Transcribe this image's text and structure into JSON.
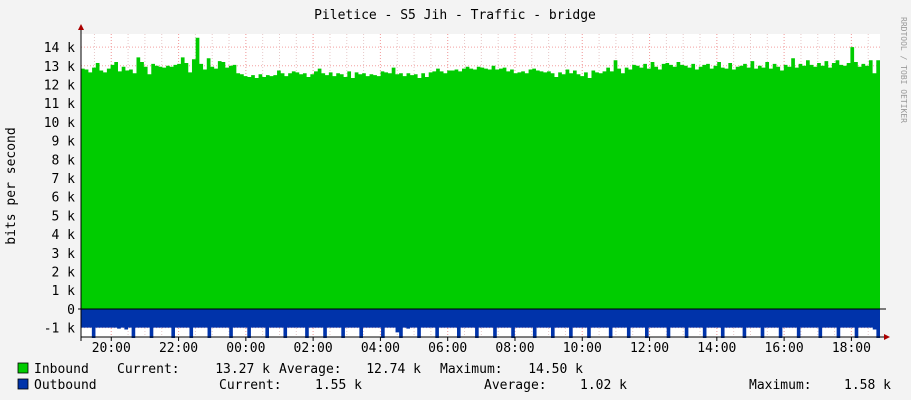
{
  "chart_data": {
    "type": "area",
    "title": "Piletice - S5 Jih - Traffic - bridge",
    "ylabel": "bits per second",
    "watermark": "RRDTOOL / TOBI OETIKER",
    "ylim": [
      -1500,
      14700
    ],
    "y_ticks": [
      {
        "v": 14000,
        "label": "14 k"
      },
      {
        "v": 13000,
        "label": "13 k"
      },
      {
        "v": 12000,
        "label": "12 k"
      },
      {
        "v": 11000,
        "label": "11 k"
      },
      {
        "v": 10000,
        "label": "10 k"
      },
      {
        "v": 9000,
        "label": "9 k"
      },
      {
        "v": 8000,
        "label": "8 k"
      },
      {
        "v": 7000,
        "label": "7 k"
      },
      {
        "v": 6000,
        "label": "6 k"
      },
      {
        "v": 5000,
        "label": "5 k"
      },
      {
        "v": 4000,
        "label": "4 k"
      },
      {
        "v": 3000,
        "label": "3 k"
      },
      {
        "v": 2000,
        "label": "2 k"
      },
      {
        "v": 1000,
        "label": "1 k"
      },
      {
        "v": 0,
        "label": "0"
      },
      {
        "v": -1000,
        "label": "-1 k"
      }
    ],
    "xlim": [
      19.1,
      18.85
    ],
    "x_ticks": [
      "20:00",
      "22:00",
      "00:00",
      "02:00",
      "04:00",
      "06:00",
      "08:00",
      "10:00",
      "12:00",
      "14:00",
      "16:00",
      "18:00"
    ],
    "series": [
      {
        "name": "Inbound",
        "color": "#00cc00",
        "values": [
          12850,
          12800,
          12650,
          12900,
          13150,
          12750,
          12650,
          12850,
          13050,
          13200,
          12700,
          12950,
          12750,
          12800,
          12600,
          13450,
          13200,
          12950,
          12550,
          13100,
          13000,
          12950,
          12900,
          13000,
          12950,
          13050,
          13100,
          13450,
          13150,
          12650,
          13350,
          14500,
          13100,
          12800,
          13400,
          12950,
          12850,
          13250,
          13200,
          12900,
          13000,
          13050,
          12600,
          12550,
          12450,
          12400,
          12500,
          12350,
          12550,
          12400,
          12500,
          12450,
          12500,
          12750,
          12600,
          12450,
          12600,
          12700,
          12650,
          12550,
          12600,
          12400,
          12550,
          12700,
          12850,
          12600,
          12500,
          12650,
          12450,
          12600,
          12550,
          12400,
          12700,
          12350,
          12650,
          12550,
          12600,
          12450,
          12550,
          12500,
          12450,
          12700,
          12650,
          12600,
          12900,
          12550,
          12600,
          12450,
          12600,
          12500,
          12550,
          12350,
          12600,
          12400,
          12650,
          12700,
          12850,
          12700,
          12600,
          12750,
          12750,
          12800,
          12700,
          12850,
          12950,
          12850,
          12800,
          12950,
          12900,
          12850,
          12800,
          13000,
          12800,
          12850,
          12900,
          12700,
          12800,
          12600,
          12650,
          12700,
          12600,
          12800,
          12850,
          12750,
          12700,
          12650,
          12700,
          12600,
          12400,
          12650,
          12550,
          12800,
          12600,
          12750,
          12550,
          12450,
          12650,
          12350,
          12750,
          12650,
          12600,
          12700,
          12900,
          12700,
          13300,
          12850,
          12600,
          12900,
          12800,
          13050,
          13000,
          12900,
          13100,
          12850,
          13200,
          12950,
          12800,
          13100,
          13150,
          13050,
          12950,
          13200,
          13050,
          13000,
          12900,
          13100,
          12800,
          12950,
          13050,
          13100,
          12850,
          13000,
          13200,
          12900,
          12850,
          13150,
          12800,
          12950,
          13000,
          13100,
          12900,
          13250,
          12850,
          13000,
          12900,
          13200,
          12850,
          13100,
          12950,
          12750,
          13050,
          12950,
          13400,
          12900,
          13100,
          13000,
          13300,
          13050,
          12950,
          13150,
          13000,
          13250,
          12900,
          13150,
          13300,
          13050,
          13000,
          13150,
          14000,
          13200,
          12950,
          13100,
          13000,
          13300,
          12600,
          13300
        ]
      },
      {
        "name": "Outbound",
        "color": "#0033aa",
        "values": [
          -1000,
          -1000,
          -1000,
          -1550,
          -1000,
          -1000,
          -1000,
          -1000,
          -1000,
          -1000,
          -1050,
          -1000,
          -1100,
          -1000,
          -1550,
          -1000,
          -1000,
          -1000,
          -1000,
          -1550,
          -1000,
          -1000,
          -1000,
          -1000,
          -1000,
          -1550,
          -1000,
          -1000,
          -1000,
          -1000,
          -1550,
          -1000,
          -1000,
          -1000,
          -1000,
          -1550,
          -1000,
          -1000,
          -1000,
          -1000,
          -1000,
          -1550,
          -1000,
          -1000,
          -1000,
          -1000,
          -1550,
          -1000,
          -1000,
          -1000,
          -1000,
          -1550,
          -1000,
          -1000,
          -1000,
          -1000,
          -1550,
          -1000,
          -1000,
          -1000,
          -1000,
          -1000,
          -1550,
          -1000,
          -1000,
          -1000,
          -1000,
          -1550,
          -1000,
          -1000,
          -1000,
          -1000,
          -1550,
          -1000,
          -1000,
          -1000,
          -1000,
          -1550,
          -1000,
          -1000,
          -1000,
          -1000,
          -1000,
          -1550,
          -1000,
          -1000,
          -1000,
          -1250,
          -1550,
          -1000,
          -1050,
          -1000,
          -1000,
          -1550,
          -1000,
          -1000,
          -1000,
          -1000,
          -1550,
          -1000,
          -1000,
          -1000,
          -1000,
          -1000,
          -1550,
          -1000,
          -1000,
          -1000,
          -1000,
          -1550,
          -1000,
          -1000,
          -1000,
          -1000,
          -1550,
          -1000,
          -1000,
          -1000,
          -1000,
          -1550,
          -1000,
          -1000,
          -1000,
          -1000,
          -1000,
          -1550,
          -1000,
          -1000,
          -1000,
          -1000,
          -1550,
          -1000,
          -1000,
          -1000,
          -1000,
          -1550,
          -1000,
          -1000,
          -1000,
          -1000,
          -1550,
          -1000,
          -1000,
          -1000,
          -1000,
          -1000,
          -1550,
          -1000,
          -1000,
          -1000,
          -1000,
          -1550,
          -1000,
          -1000,
          -1000,
          -1000,
          -1550,
          -1000,
          -1000,
          -1000,
          -1000,
          -1000,
          -1550,
          -1000,
          -1000,
          -1000,
          -1000,
          -1550,
          -1000,
          -1000,
          -1000,
          -1000,
          -1550,
          -1000,
          -1000,
          -1000,
          -1000,
          -1550,
          -1000,
          -1000,
          -1000,
          -1000,
          -1000,
          -1550,
          -1000,
          -1000,
          -1000,
          -1000,
          -1550,
          -1000,
          -1000,
          -1000,
          -1000,
          -1550,
          -1000,
          -1000,
          -1000,
          -1000,
          -1550,
          -1000,
          -1000,
          -1000,
          -1000,
          -1000,
          -1550,
          -1000,
          -1000,
          -1000,
          -1000,
          -1550,
          -1000,
          -1000,
          -1000,
          -1000,
          -1550,
          -1000,
          -1000,
          -1000,
          -1000,
          -1100,
          -1550
        ]
      }
    ],
    "legend": [
      {
        "name": "Inbound",
        "color": "#00cc00",
        "stats": [
          {
            "label": "Current:",
            "value": "13.27 k"
          },
          {
            "label": "Average:",
            "value": "12.74 k"
          },
          {
            "label": "Maximum:",
            "value": "14.50 k"
          }
        ]
      },
      {
        "name": "Outbound",
        "color": "#0033aa",
        "stats": [
          {
            "label": "Current:",
            "value": "1.55 k"
          },
          {
            "label": "Average:",
            "value": "1.02 k"
          },
          {
            "label": "Maximum:",
            "value": "1.58 k"
          }
        ]
      }
    ],
    "grid": true
  }
}
